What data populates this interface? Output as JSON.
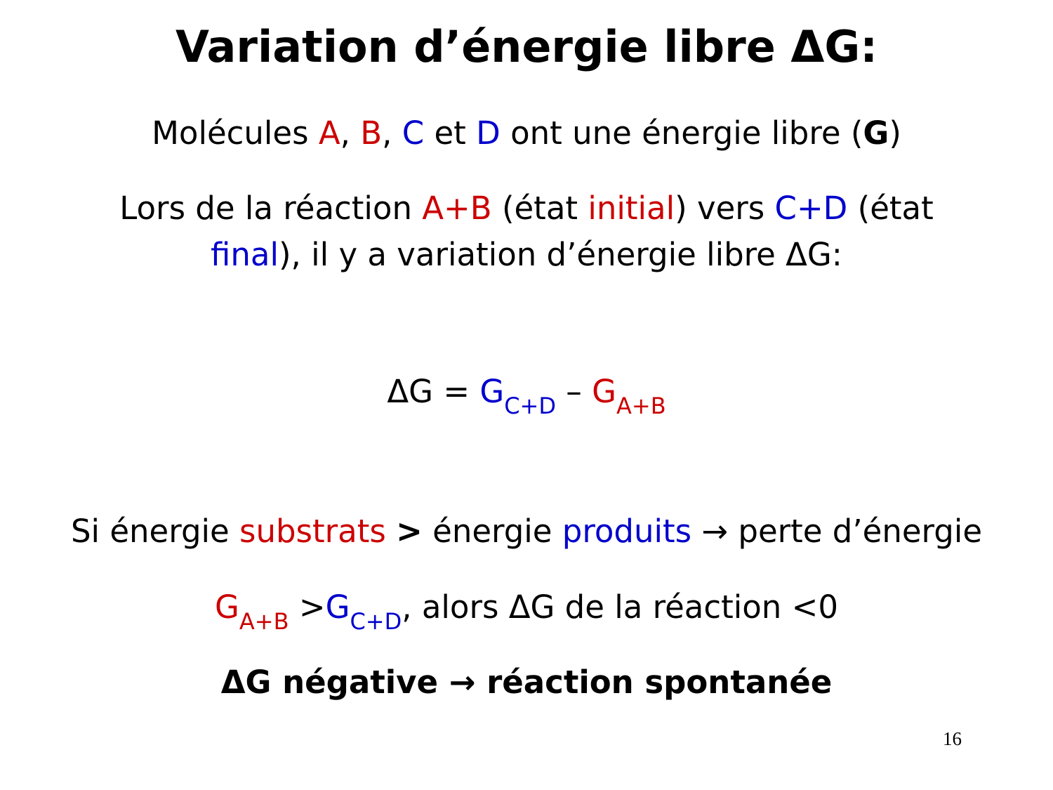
{
  "colors": {
    "red": "#CC0000",
    "blue": "#0000CC",
    "black": "#000000"
  },
  "slide": {
    "title": [
      {
        "text": "Variation d’énergie libre ΔG",
        "color": "black",
        "bold": true
      },
      {
        "text": ":",
        "color": "black",
        "bold": false
      }
    ],
    "lines": [
      [
        {
          "text": "Molécules ",
          "color": "black"
        },
        {
          "text": "A",
          "color": "red"
        },
        {
          "text": ", ",
          "color": "black"
        },
        {
          "text": "B",
          "color": "red"
        },
        {
          "text": ", ",
          "color": "black"
        },
        {
          "text": "C",
          "color": "blue"
        },
        {
          "text": " et ",
          "color": "black"
        },
        {
          "text": "D",
          "color": "blue"
        },
        {
          "text": " ont une énergie libre (",
          "color": "black"
        },
        {
          "text": "G",
          "color": "black",
          "bold": true
        },
        {
          "text": ")",
          "color": "black"
        }
      ],
      [
        {
          "text": "Lors de la réaction ",
          "color": "black"
        },
        {
          "text": "A+B",
          "color": "red"
        },
        {
          "text": " (état ",
          "color": "black"
        },
        {
          "text": "initial",
          "color": "red"
        },
        {
          "text": ") vers ",
          "color": "black"
        },
        {
          "text": "C+D",
          "color": "blue"
        },
        {
          "text": " (état",
          "color": "black"
        }
      ],
      [
        {
          "text": "final",
          "color": "blue"
        },
        {
          "text": "), il y a variation d’énergie libre ΔG:",
          "color": "black"
        }
      ],
      [
        {
          "text": "ΔG = ",
          "color": "black"
        },
        {
          "text": "G",
          "color": "blue"
        },
        {
          "text": "C+D",
          "color": "blue",
          "sub": true
        },
        {
          "text": " – ",
          "color": "black"
        },
        {
          "text": "G",
          "color": "red"
        },
        {
          "text": "A+B",
          "color": "red",
          "sub": true
        }
      ],
      [
        {
          "text": "Si énergie ",
          "color": "black"
        },
        {
          "text": "substrats",
          "color": "red"
        },
        {
          "text": " ",
          "color": "black"
        },
        {
          "text": ">",
          "color": "black",
          "bold": true
        },
        {
          "text": " énergie ",
          "color": "black"
        },
        {
          "text": "produits",
          "color": "blue"
        },
        {
          "text": " → perte d’énergie",
          "color": "black"
        }
      ],
      [
        {
          "text": "G",
          "color": "red"
        },
        {
          "text": "A+B",
          "color": "red",
          "sub": true
        },
        {
          "text": " >",
          "color": "black"
        },
        {
          "text": "G",
          "color": "blue"
        },
        {
          "text": "C+D",
          "color": "blue",
          "sub": true
        },
        {
          "text": ", alors ΔG de la réaction <0",
          "color": "black"
        }
      ],
      [
        {
          "text": "ΔG négative → réaction spontanée",
          "color": "black",
          "bold": true
        }
      ]
    ],
    "page_number": "16"
  }
}
